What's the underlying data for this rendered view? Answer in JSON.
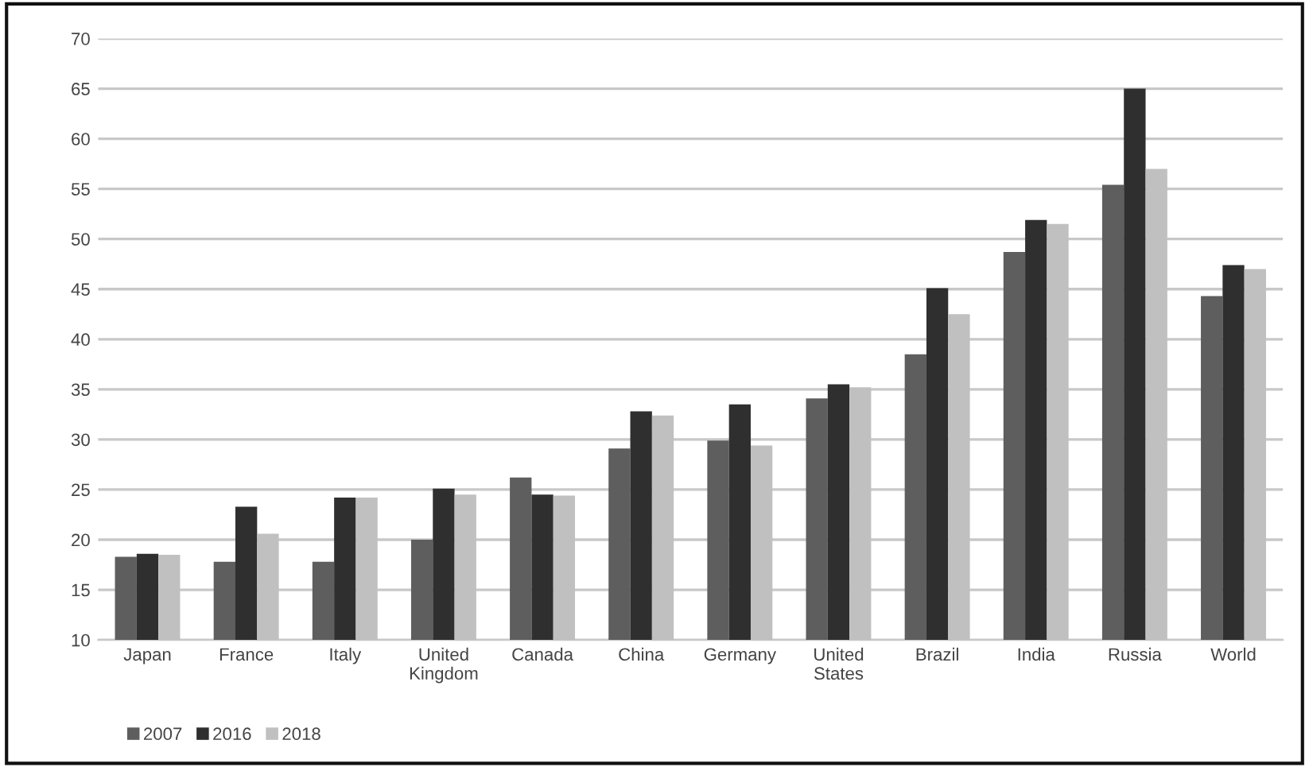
{
  "chart_data": {
    "type": "bar",
    "categories": [
      "Japan",
      "France",
      "Italy",
      "United\nKingdom",
      "Canada",
      "China",
      "Germany",
      "United\nStates",
      "Brazil",
      "India",
      "Russia",
      "World"
    ],
    "series": [
      {
        "name": "2007",
        "color": "#5e5e5e",
        "values": [
          18.3,
          17.8,
          17.8,
          20.0,
          26.2,
          29.1,
          29.9,
          34.1,
          38.5,
          48.7,
          55.4,
          44.3
        ]
      },
      {
        "name": "2016",
        "color": "#2f2f2f",
        "values": [
          18.6,
          23.3,
          24.2,
          25.1,
          24.5,
          32.8,
          33.5,
          35.5,
          45.1,
          51.9,
          65.0,
          47.4
        ]
      },
      {
        "name": "2018",
        "color": "#c0c0c0",
        "values": [
          18.5,
          20.6,
          24.2,
          24.5,
          24.4,
          32.4,
          29.4,
          35.2,
          42.5,
          51.5,
          57.0,
          47.0
        ]
      }
    ],
    "ylim": [
      10,
      70
    ],
    "yticks": [
      10,
      15,
      20,
      25,
      30,
      35,
      40,
      45,
      50,
      55,
      60,
      65,
      70
    ],
    "grid": "y",
    "legend": "bottom left"
  }
}
